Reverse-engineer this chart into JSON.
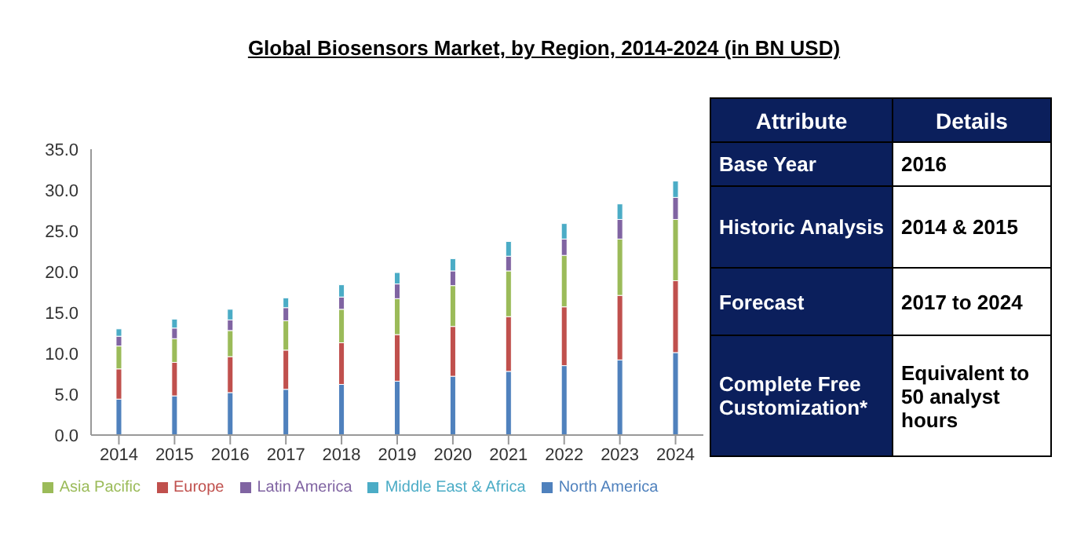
{
  "chart_data": [
    {
      "type": "bar",
      "title": "Global Biosensors Market, by Region, 2014-2024 (in BN USD)",
      "categories": [
        "2014",
        "2015",
        "2016",
        "2017",
        "2018",
        "2019",
        "2020",
        "2021",
        "2022",
        "2023",
        "2024"
      ],
      "stacked": true,
      "ylim": [
        0,
        35
      ],
      "yticks": [
        {
          "value": 0,
          "label": "0.0"
        },
        {
          "value": 5,
          "label": "5.0"
        },
        {
          "value": 10,
          "label": "10.0"
        },
        {
          "value": 15,
          "label": "15.0"
        },
        {
          "value": 20,
          "label": "20.0"
        },
        {
          "value": 25,
          "label": "25.0"
        },
        {
          "value": 30,
          "label": "30.0"
        },
        {
          "value": 35,
          "label": "35.0"
        }
      ],
      "grid": false,
      "legend": "bottom",
      "series": [
        {
          "name": "North America",
          "color": "#4f81bd",
          "values": [
            4.4,
            4.8,
            5.2,
            5.6,
            6.2,
            6.6,
            7.2,
            7.8,
            8.5,
            9.2,
            10.1
          ]
        },
        {
          "name": "Europe",
          "color": "#c0504d",
          "values": [
            3.7,
            4.1,
            4.4,
            4.8,
            5.1,
            5.7,
            6.1,
            6.7,
            7.2,
            7.9,
            8.8
          ]
        },
        {
          "name": "Asia Pacific",
          "color": "#9bbb59",
          "values": [
            2.8,
            2.9,
            3.2,
            3.6,
            4.1,
            4.4,
            5.0,
            5.6,
            6.3,
            6.9,
            7.5
          ]
        },
        {
          "name": "Latin America",
          "color": "#8064a2",
          "values": [
            1.2,
            1.3,
            1.3,
            1.6,
            1.5,
            1.8,
            1.8,
            1.8,
            2.0,
            2.4,
            2.7
          ]
        },
        {
          "name": "Middle East & Africa",
          "color": "#4bacc6",
          "values": [
            0.9,
            1.1,
            1.3,
            1.2,
            1.5,
            1.4,
            1.5,
            1.8,
            1.9,
            1.9,
            2.0
          ]
        }
      ]
    },
    {
      "type": "other",
      "annotations": [
        "Attribute",
        "Details",
        "Base Year",
        "2016",
        "Historic Analysis",
        "2014 & 2015",
        "Forecast",
        "2017 to 2024",
        "Complete Free Customization*",
        "Equivalent to 50 analyst hours"
      ]
    }
  ]
}
